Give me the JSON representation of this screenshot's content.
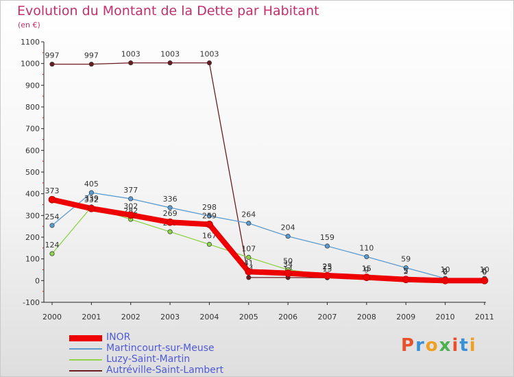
{
  "title": "Evolution du Montant de la Dette par Habitant",
  "unit": "(en €)",
  "brand": {
    "text": "Proxiti",
    "colors": [
      "#e8502a",
      "#3a8fd8",
      "#f0a020",
      "#4caf50",
      "#e8502a",
      "#3a8fd8",
      "#f0a020"
    ]
  },
  "chart_data": {
    "type": "line",
    "title": "Evolution du Montant de la Dette par Habitant",
    "ylabel": "(en €)",
    "xlabel": "",
    "x": [
      "2000",
      "2001",
      "2002",
      "2003",
      "2004",
      "2005",
      "2006",
      "2007",
      "2008",
      "2009",
      "2010",
      "2011"
    ],
    "ylim": [
      -100,
      1100
    ],
    "yticks": [
      -100,
      0,
      100,
      200,
      300,
      400,
      500,
      600,
      700,
      800,
      900,
      1000,
      1100
    ],
    "grid": false,
    "legend_position": "bottom-left",
    "series": [
      {
        "name": "Autréville-Saint-Lambert",
        "color": "#6b1c20",
        "values": [
          997,
          997,
          1003,
          1003,
          1003,
          14,
          14,
          13,
          9,
          2,
          2,
          6
        ],
        "labels": [
          "997",
          "997",
          "1003",
          "1003",
          "1003",
          "14",
          "14",
          "13",
          "9",
          "2",
          "2",
          "6"
        ]
      },
      {
        "name": "Martincourt-sur-Meuse",
        "color": "#5b9bd0",
        "values": [
          254,
          405,
          377,
          336,
          298,
          264,
          204,
          159,
          110,
          59,
          10,
          10
        ],
        "labels": [
          "254",
          "405",
          "377",
          "336",
          "298",
          "264",
          "204",
          "159",
          "110",
          "59",
          "10",
          "10"
        ]
      },
      {
        "name": "Luzy-Saint-Martin",
        "color": "#8fd44a",
        "values": [
          124,
          339,
          282,
          225,
          167,
          107,
          50,
          25,
          15,
          5,
          0,
          0
        ],
        "labels": [
          "124",
          "339",
          "282",
          "225",
          "167",
          "107",
          "50",
          "25",
          "15",
          "5",
          "0",
          "0"
        ]
      },
      {
        "name": "INOR",
        "color": "#ee0000",
        "values": [
          373,
          332,
          302,
          269,
          259,
          41,
          34,
          23,
          15,
          5,
          0,
          0
        ],
        "labels": [
          "373",
          "332",
          "302",
          "269",
          "259",
          "41",
          "34",
          "23",
          "15",
          "5",
          "0",
          "0"
        ]
      }
    ]
  },
  "legend": [
    {
      "name": "INOR",
      "color": "#ee0000",
      "thickness": 9
    },
    {
      "name": "Martincourt-sur-Meuse",
      "color": "#5b9bd0",
      "thickness": 2
    },
    {
      "name": "Luzy-Saint-Martin",
      "color": "#8fd44a",
      "thickness": 2
    },
    {
      "name": "Autréville-Saint-Lambert",
      "color": "#6b1c20",
      "thickness": 2
    }
  ]
}
